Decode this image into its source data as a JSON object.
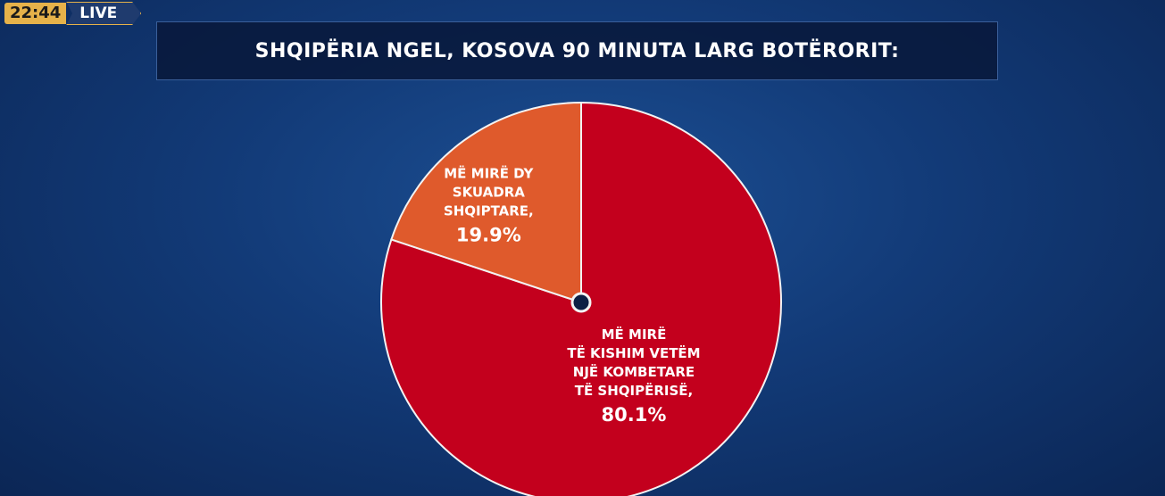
{
  "broadcast": {
    "time": "22:44",
    "live": "LIVE"
  },
  "chart_data": {
    "type": "pie",
    "title": "SHQIPËRIA NGEL, KOSOVA 90 MINUTA LARG BOTËRORIT:",
    "categories": [
      "MË MIRË\nTË KISHIM VETËM\nNJË KOMBETARE\nTË SHQIPËRISË,",
      "MË MIRË DY\nSKUADRA\nSHQIPTARE,"
    ],
    "values": [
      80.1,
      19.9
    ],
    "value_labels": [
      "80.1%",
      "19.9%"
    ],
    "colors": [
      "#c3001d",
      "#df5a2c"
    ]
  }
}
